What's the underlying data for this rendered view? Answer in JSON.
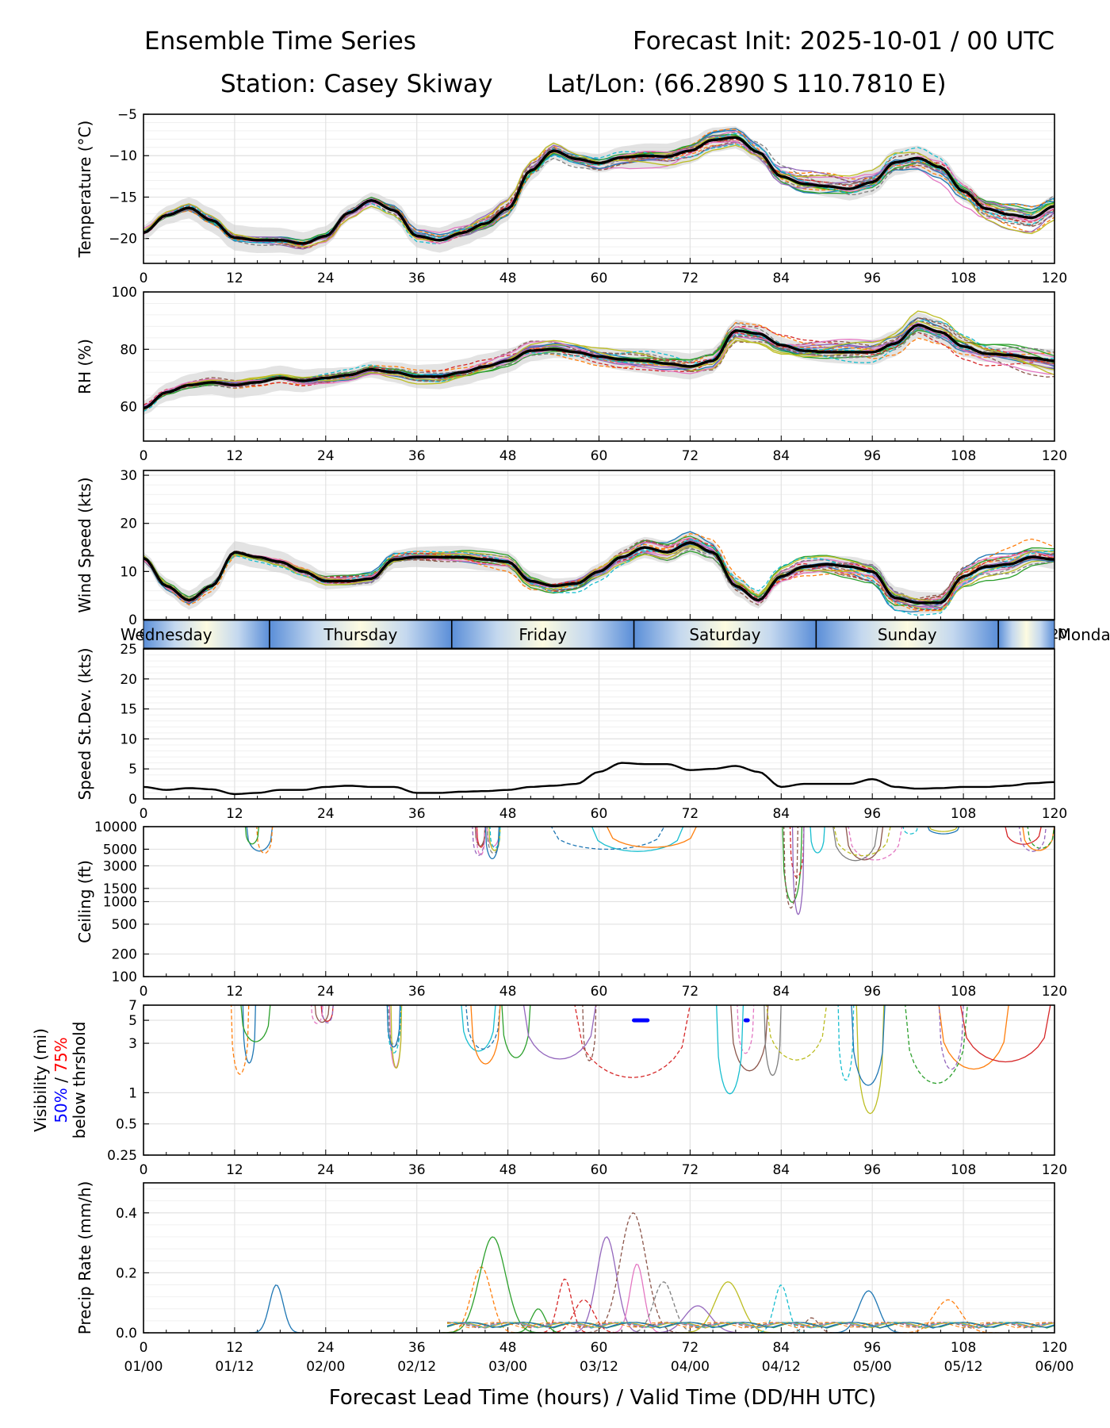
{
  "header": {
    "title_left": "Ensemble Time Series",
    "title_right": "Forecast Init: 2025-10-01 / 00 UTC",
    "station": "Station: Casey Skiway",
    "latlon": "Lat/Lon: (66.2890 S 110.7810 E)"
  },
  "xaxis": {
    "label": "Forecast Lead Time (hours) / Valid Time (DD/HH UTC)",
    "ticks": [
      0,
      12,
      24,
      36,
      48,
      60,
      72,
      84,
      96,
      108,
      120
    ],
    "valid_labels": [
      "01/00",
      "01/12",
      "02/00",
      "02/12",
      "03/00",
      "03/12",
      "04/00",
      "04/12",
      "05/00",
      "05/12",
      "06/00"
    ],
    "range": [
      0,
      120
    ]
  },
  "day_band": {
    "days": [
      "Wednesday",
      "Thursday",
      "Friday",
      "Saturday",
      "Sunday",
      "Monday"
    ],
    "midnight_hours": [
      16.6,
      40.6,
      64.6,
      88.6,
      112.6
    ]
  },
  "colors": {
    "mean": "#000000",
    "spread": "#d0d0d0",
    "vis50": "#0000ff",
    "vis75": "#ff0000",
    "members": [
      "#1f77b4",
      "#ff7f0e",
      "#2ca02c",
      "#d62728",
      "#9467bd",
      "#8c564b",
      "#e377c2",
      "#7f7f7f",
      "#bcbd22",
      "#17becf"
    ]
  },
  "chart_data": [
    {
      "type": "line",
      "name": "temperature",
      "ylabel": "Temperature (°C)",
      "ylim": [
        -23,
        -5
      ],
      "yticks": [
        -5,
        -10,
        -15,
        -20
      ],
      "ytick_labels": [
        "−5",
        "−10",
        "−15",
        "−20"
      ],
      "mean": {
        "x": [
          0,
          3,
          6,
          9,
          12,
          15,
          18,
          21,
          24,
          27,
          30,
          33,
          36,
          39,
          42,
          45,
          48,
          51,
          54,
          57,
          60,
          63,
          66,
          69,
          72,
          75,
          78,
          81,
          84,
          87,
          90,
          93,
          96,
          99,
          102,
          105,
          108,
          111,
          114,
          117,
          120
        ],
        "y": [
          -19.3,
          -17.2,
          -16.3,
          -17.8,
          -19.9,
          -20.2,
          -20.2,
          -20.6,
          -19.7,
          -16.9,
          -15.4,
          -16.6,
          -19.7,
          -20.2,
          -19.3,
          -18.2,
          -16.4,
          -11.8,
          -9.4,
          -10.4,
          -10.9,
          -10.2,
          -10.0,
          -10.1,
          -9.4,
          -8.1,
          -7.8,
          -9.6,
          -12.5,
          -13.4,
          -13.7,
          -14.0,
          -13.2,
          -10.8,
          -10.3,
          -11.4,
          -14.3,
          -16.4,
          -17.1,
          -17.5,
          -16.1
        ]
      },
      "spread_half_width": 1.2,
      "member_jitter": 1.6,
      "members": 20
    },
    {
      "type": "line",
      "name": "relative_humidity",
      "ylabel": "RH (%)",
      "ylim": [
        48,
        100
      ],
      "yticks": [
        60,
        80,
        100
      ],
      "ytick_labels": [
        "60",
        "80",
        "100"
      ],
      "mean": {
        "x": [
          0,
          3,
          6,
          9,
          12,
          15,
          18,
          21,
          24,
          27,
          30,
          33,
          36,
          39,
          42,
          45,
          48,
          51,
          54,
          57,
          60,
          63,
          66,
          69,
          72,
          75,
          78,
          81,
          84,
          87,
          90,
          93,
          96,
          99,
          102,
          105,
          108,
          111,
          114,
          117,
          120
        ],
        "y": [
          59.5,
          65.0,
          67.5,
          68.5,
          67.5,
          68.5,
          70.0,
          69.0,
          70.0,
          71.0,
          73.0,
          72.0,
          70.5,
          70.5,
          72.0,
          74.0,
          76.0,
          79.5,
          80.0,
          79.0,
          77.5,
          76.5,
          76.0,
          75.0,
          74.0,
          76.0,
          86.5,
          85.5,
          81.5,
          79.5,
          79.0,
          79.0,
          79.0,
          82.0,
          88.5,
          86.0,
          81.0,
          78.5,
          78.0,
          77.0,
          76.0
        ]
      },
      "spread_half_width": 3.5,
      "member_jitter": 4.0,
      "members": 20
    },
    {
      "type": "line",
      "name": "wind_speed",
      "ylabel": "Wind Speed (kts)",
      "ylim": [
        0,
        31
      ],
      "yticks": [
        0,
        10,
        20,
        30
      ],
      "ytick_labels": [
        "0",
        "10",
        "20",
        "30"
      ],
      "mean": {
        "x": [
          0,
          3,
          6,
          9,
          12,
          15,
          18,
          21,
          24,
          27,
          30,
          33,
          36,
          39,
          42,
          45,
          48,
          51,
          54,
          57,
          60,
          63,
          66,
          69,
          72,
          75,
          78,
          81,
          84,
          87,
          90,
          93,
          96,
          99,
          102,
          105,
          108,
          111,
          114,
          117,
          120
        ],
        "y": [
          12.8,
          7.0,
          4.0,
          7.0,
          14.0,
          13.0,
          12.0,
          10.0,
          8.0,
          8.0,
          8.5,
          12.5,
          13.0,
          13.0,
          13.0,
          12.5,
          12.0,
          8.0,
          7.0,
          7.5,
          10.0,
          13.0,
          15.0,
          14.0,
          16.0,
          14.0,
          7.0,
          4.0,
          9.0,
          11.0,
          11.5,
          11.0,
          10.0,
          4.5,
          3.5,
          3.5,
          9.0,
          11.0,
          11.5,
          13.0,
          12.5
        ]
      },
      "spread_half_width": 1.8,
      "member_jitter": 2.5,
      "members": 20
    },
    {
      "type": "line",
      "name": "speed_stdev",
      "ylabel": "Speed St.Dev. (kts)",
      "ylim": [
        0,
        25
      ],
      "yticks": [
        0,
        5,
        10,
        15,
        20,
        25
      ],
      "ytick_labels": [
        "0",
        "5",
        "10",
        "15",
        "20",
        "25"
      ],
      "mean": {
        "x": [
          0,
          3,
          6,
          9,
          12,
          15,
          18,
          21,
          24,
          27,
          30,
          33,
          36,
          39,
          42,
          45,
          48,
          51,
          54,
          57,
          60,
          63,
          66,
          69,
          72,
          75,
          78,
          81,
          84,
          87,
          90,
          93,
          96,
          99,
          102,
          105,
          108,
          111,
          114,
          117,
          120
        ],
        "y": [
          2.0,
          1.5,
          1.8,
          1.6,
          0.8,
          1.0,
          1.5,
          1.5,
          2.0,
          2.2,
          2.0,
          2.0,
          1.0,
          1.0,
          1.2,
          1.3,
          1.5,
          2.0,
          2.2,
          2.5,
          4.5,
          6.0,
          5.8,
          5.8,
          4.8,
          5.0,
          5.5,
          4.5,
          2.0,
          2.5,
          2.5,
          2.5,
          3.3,
          2.0,
          1.7,
          1.8,
          2.0,
          2.0,
          2.2,
          2.6,
          2.8
        ]
      }
    },
    {
      "type": "line",
      "name": "ceiling",
      "ylabel": "Ceiling (ft)",
      "yscale": "log",
      "ylim": [
        100,
        10000
      ],
      "yticks": [
        100,
        200,
        500,
        1000,
        1500,
        3000,
        5000,
        10000
      ],
      "ytick_labels": [
        "100",
        "200",
        "500",
        "1000",
        "1500",
        "3000",
        "5000",
        "10000"
      ],
      "dip_events": [
        {
          "start": 13,
          "end": 17,
          "min": 4200
        },
        {
          "start": 43,
          "end": 45,
          "min": 3700
        },
        {
          "start": 45,
          "end": 47,
          "min": 3300
        },
        {
          "start": 52,
          "end": 80,
          "min": 3800
        },
        {
          "start": 84,
          "end": 87,
          "min": 500
        },
        {
          "start": 86,
          "end": 100,
          "min": 2500
        },
        {
          "start": 100,
          "end": 108,
          "min": 8000
        },
        {
          "start": 113,
          "end": 120,
          "min": 4500
        }
      ]
    },
    {
      "type": "line",
      "name": "visibility",
      "ylabel": "Visibility (mi)",
      "ylabel_line2_a": "50%",
      "ylabel_line2_sep": " / ",
      "ylabel_line2_b": "75%",
      "ylabel_line3": "below thrshold",
      "yscale": "log",
      "ylim": [
        0.25,
        7
      ],
      "yticks": [
        0.25,
        0.5,
        1,
        3,
        5,
        7
      ],
      "ytick_labels": [
        "0.25",
        "0.5",
        "1",
        "3",
        "5",
        "7"
      ],
      "dip_events": [
        {
          "start": 11,
          "end": 20,
          "min": 1.5
        },
        {
          "start": 22,
          "end": 25,
          "min": 4.5
        },
        {
          "start": 32,
          "end": 34,
          "min": 1.3
        },
        {
          "start": 41,
          "end": 47,
          "min": 1.1
        },
        {
          "start": 47,
          "end": 75,
          "min": 1.0
        },
        {
          "start": 75,
          "end": 90,
          "min": 0.9
        },
        {
          "start": 90,
          "end": 100,
          "min": 0.6
        },
        {
          "start": 100,
          "end": 120,
          "min": 1.1
        }
      ],
      "threshold50": [
        {
          "start": 64.6,
          "end": 66.4,
          "value": 5.0
        },
        {
          "start": 79.3,
          "end": 79.6,
          "value": 5.0
        }
      ]
    },
    {
      "type": "line",
      "name": "precip_rate",
      "ylabel": "Precip Rate (mm/h)",
      "ylim": [
        0,
        0.5
      ],
      "yticks": [
        0,
        0.2,
        0.4
      ],
      "ytick_labels": [
        "0.0",
        "0.2",
        "0.4"
      ],
      "peaks": [
        {
          "x": 17.5,
          "y": 0.16
        },
        {
          "x": 44.5,
          "y": 0.22
        },
        {
          "x": 46.0,
          "y": 0.32
        },
        {
          "x": 55.5,
          "y": 0.18
        },
        {
          "x": 61.0,
          "y": 0.32
        },
        {
          "x": 64.5,
          "y": 0.4
        },
        {
          "x": 65.0,
          "y": 0.23
        },
        {
          "x": 68.5,
          "y": 0.17
        },
        {
          "x": 77.0,
          "y": 0.17
        },
        {
          "x": 84.0,
          "y": 0.16
        },
        {
          "x": 95.5,
          "y": 0.14
        },
        {
          "x": 106.0,
          "y": 0.11
        },
        {
          "x": 52.0,
          "y": 0.08
        },
        {
          "x": 58.0,
          "y": 0.11
        },
        {
          "x": 73.0,
          "y": 0.09
        },
        {
          "x": 88.0,
          "y": 0.05
        }
      ]
    }
  ]
}
